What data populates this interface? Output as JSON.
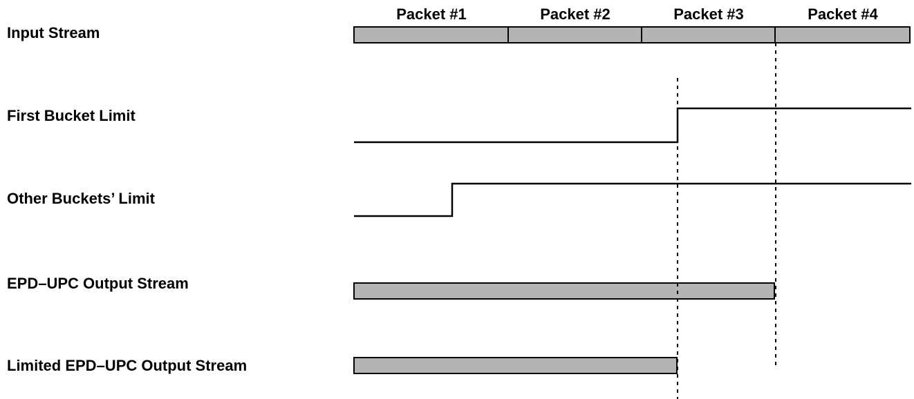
{
  "colors": {
    "bar_fill": "#b4b4b4",
    "line": "#000000",
    "background": "#ffffff"
  },
  "packets": [
    "Packet #1",
    "Packet #2",
    "Packet #3",
    "Packet #4"
  ],
  "rows": {
    "input_stream": "Input Stream",
    "first_bucket_limit": "First Bucket Limit",
    "other_buckets_limit": "Other Buckets’ Limit",
    "epd_upc_output_stream": "EPD–UPC Output Stream",
    "limited_epd_upc_output_stream": "Limited EPD–UPC Output Stream"
  }
}
